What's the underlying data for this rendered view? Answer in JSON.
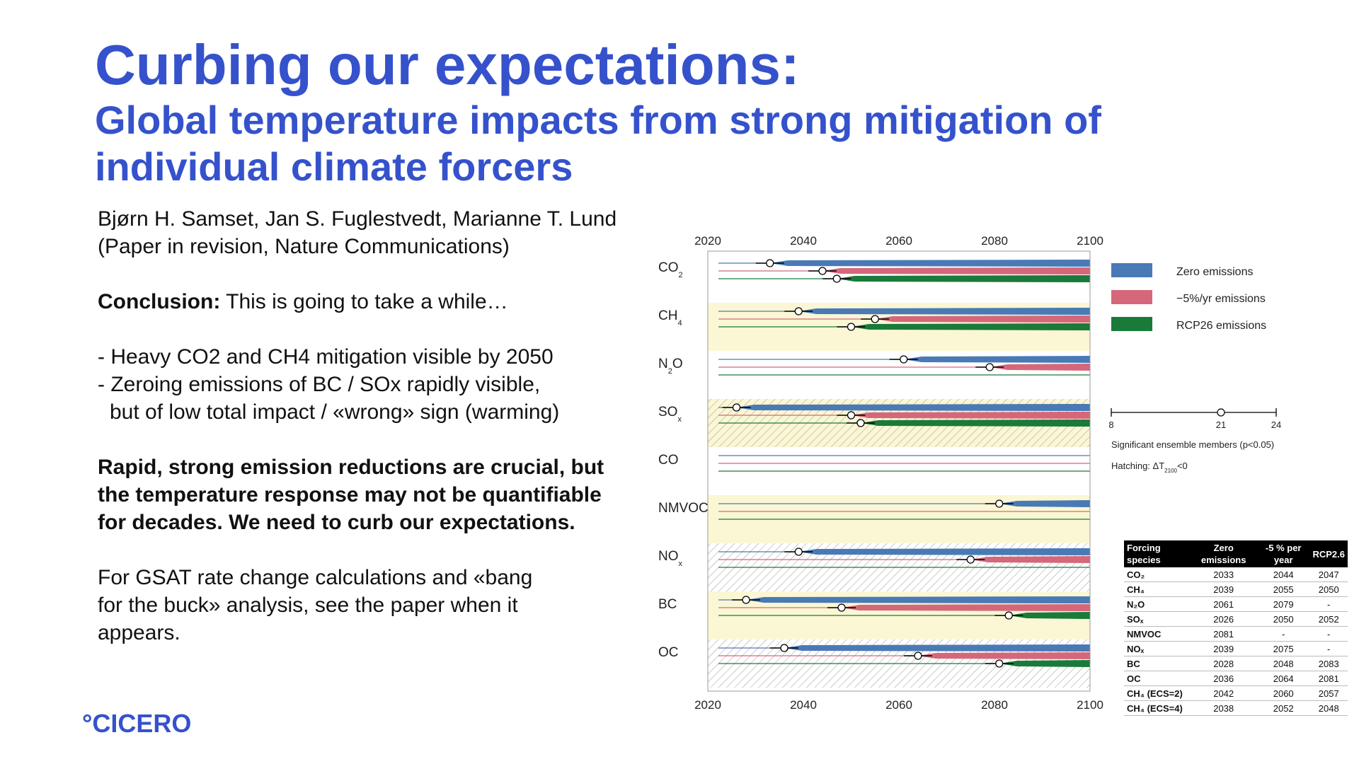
{
  "title": "Curbing our expectations:",
  "subtitle": "Global temperature impacts from strong mitigation of individual climate forcers",
  "authors": "Bjørn H. Samset, Jan S. Fuglestvedt, Marianne T. Lund",
  "venue": "(Paper in revision, Nature Communications)",
  "conclusion_label": "Conclusion:",
  "conclusion_text": " This is going to take a while…",
  "bullet1": "- Heavy CO2 and CH4 mitigation visible by 2050",
  "bullet2": "- Zeroing emissions of BC / SOx rapidly visible,",
  "bullet3": "but of low total impact / «wrong» sign (warming)",
  "key_msg_1": "Rapid, strong emission reductions are crucial, but",
  "key_msg_2": "the temperature response may not be quantifiable",
  "key_msg_3": "for decades. We need to curb our expectations.",
  "gsat_1": "For GSAT rate change calculations and «bang",
  "gsat_2": "for the buck» analysis, see the paper when it",
  "gsat_3": "appears.",
  "logo": "°CICERO",
  "colors": {
    "title": "#3552cc",
    "zero": "#4a7ab5",
    "minus5": "#d4687a",
    "rcp26": "#1a7a3a",
    "band": "#fbf7d4"
  },
  "chart_data": {
    "type": "bar",
    "x_ticks": [
      "2020",
      "2040",
      "2060",
      "2080",
      "2100"
    ],
    "xlim": [
      2020,
      2100
    ],
    "species": [
      "CO2",
      "CH4",
      "N2O",
      "SOx",
      "CO",
      "NMVOC",
      "NOx",
      "BC",
      "OC"
    ],
    "species_labels": [
      {
        "main": "CO",
        "sub": "2"
      },
      {
        "main": "CH",
        "sub": "4"
      },
      {
        "main": "N",
        "sub": "2",
        "tail": "O"
      },
      {
        "main": "SO",
        "sub": "x"
      },
      {
        "main": "CO",
        "sub": ""
      },
      {
        "main": "NMVOC",
        "sub": ""
      },
      {
        "main": "NO",
        "sub": "x"
      },
      {
        "main": "BC",
        "sub": ""
      },
      {
        "main": "OC",
        "sub": ""
      }
    ],
    "bands": [
      false,
      true,
      false,
      true,
      false,
      true,
      false,
      true,
      false
    ],
    "hatched": [
      false,
      false,
      false,
      true,
      false,
      false,
      true,
      false,
      true
    ],
    "series": [
      {
        "name": "Zero emissions",
        "values": [
          2033,
          2039,
          2061,
          2026,
          null,
          2081,
          2039,
          2028,
          2036
        ]
      },
      {
        "name": "−5%/yr emissions",
        "values": [
          2044,
          2055,
          2079,
          2050,
          null,
          null,
          2075,
          2048,
          2064
        ]
      },
      {
        "name": "RCP26 emissions",
        "values": [
          2047,
          2050,
          null,
          2052,
          null,
          null,
          null,
          2083,
          2081
        ]
      }
    ],
    "legend": [
      "Zero emissions",
      "−5%/yr emissions",
      "RCP26 emissions"
    ],
    "scale_ticks": [
      "8",
      "21",
      "24"
    ],
    "scale_caption": "Significant ensemble members (p<0.05)",
    "hatching_label": "Hatching: ΔT",
    "hatching_sub": "2100",
    "hatching_tail": "<0"
  },
  "table": {
    "headers": [
      "Forcing species",
      "Zero emissions",
      "-5 % per year",
      "RCP2.6"
    ],
    "rows": [
      [
        "CO₂",
        "2033",
        "2044",
        "2047"
      ],
      [
        "CH₄",
        "2039",
        "2055",
        "2050"
      ],
      [
        "N₂O",
        "2061",
        "2079",
        "-"
      ],
      [
        "SOₓ",
        "2026",
        "2050",
        "2052"
      ],
      [
        "NMVOC",
        "2081",
        "-",
        "-"
      ],
      [
        "NOₓ",
        "2039",
        "2075",
        "-"
      ],
      [
        "BC",
        "2028",
        "2048",
        "2083"
      ],
      [
        "OC",
        "2036",
        "2064",
        "2081"
      ],
      [
        "CH₄ (ECS=2)",
        "2042",
        "2060",
        "2057"
      ],
      [
        "CH₄ (ECS=4)",
        "2038",
        "2052",
        "2048"
      ]
    ]
  }
}
